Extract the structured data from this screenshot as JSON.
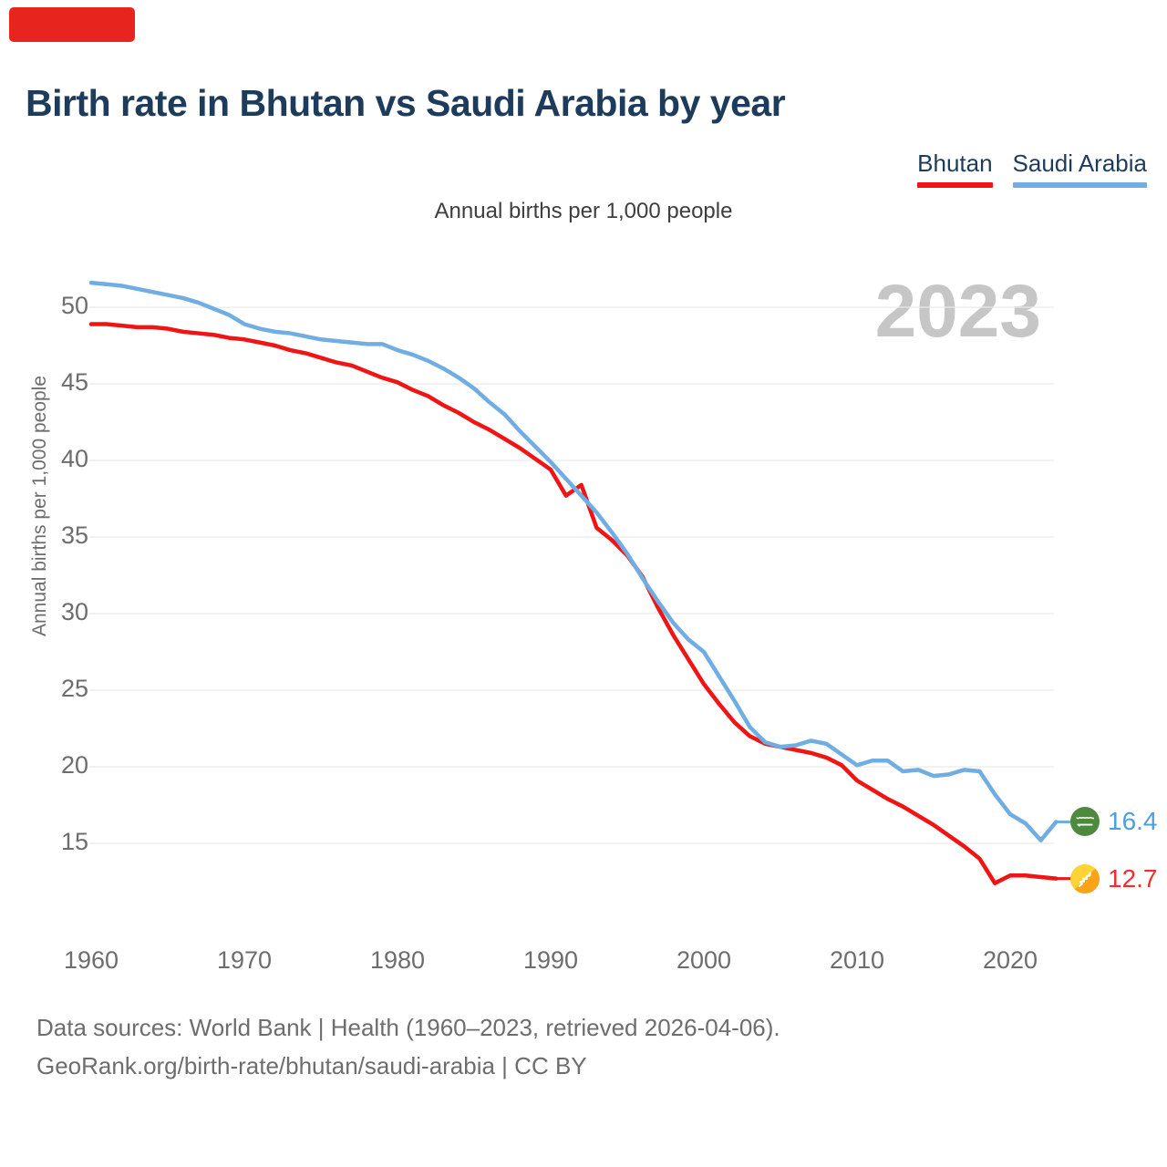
{
  "page": {
    "title": "Birth rate in Bhutan vs Saudi Arabia by year",
    "subtitle": "Annual births per 1,000 people",
    "watermark": "2023",
    "footer_line1": "Data sources: World Bank | Health (1960–2023, retrieved 2026-04-06).",
    "footer_line2": "GeoRank.org/birth-rate/bhutan/saudi-arabia | CC BY"
  },
  "colors": {
    "title_navy": "#1d3c5c",
    "bhutan_red": "#f01414",
    "saudi_blue": "#70ade2",
    "value_red": "#f22c2c",
    "value_blue": "#4d9fdb",
    "text_gray": "#6d6d6d",
    "subtitle_gray": "#3e3e3e",
    "watermark_gray": "#c6c6c6",
    "grid_gray": "#e9e9e9",
    "banner_red": "#e8241f",
    "saudi_flag_green": "#4e8a3d",
    "bhutan_flag_yellow": "#fdd335",
    "bhutan_flag_orange": "#f9a316"
  },
  "legend": {
    "items": [
      {
        "label": "Bhutan",
        "color": "#f01414"
      },
      {
        "label": "Saudi Arabia",
        "color": "#70ade2"
      }
    ]
  },
  "endpoints": [
    {
      "series": "Saudi Arabia",
      "value": "16.4",
      "icon": "saudi-arabia-flag-icon",
      "text_color": "#4d9fdb"
    },
    {
      "series": "Bhutan",
      "value": "12.7",
      "icon": "bhutan-flag-icon",
      "text_color": "#f22c2c"
    }
  ],
  "chart_data": {
    "type": "line",
    "title": "Birth rate in Bhutan vs Saudi Arabia by year",
    "ylabel": "Annual births per 1,000 people",
    "xlabel": "",
    "x_range": [
      1960,
      2023
    ],
    "ylim": [
      12,
      53
    ],
    "grid": "horizontal",
    "legend_position": "top-right",
    "xticks": [
      1960,
      1970,
      1980,
      1990,
      2000,
      2010,
      2020
    ],
    "yticks": [
      50,
      45,
      40,
      35,
      30,
      25,
      20,
      15
    ],
    "years": [
      1960,
      1961,
      1962,
      1963,
      1964,
      1965,
      1966,
      1967,
      1968,
      1969,
      1970,
      1971,
      1972,
      1973,
      1974,
      1975,
      1976,
      1977,
      1978,
      1979,
      1980,
      1981,
      1982,
      1983,
      1984,
      1985,
      1986,
      1987,
      1988,
      1989,
      1990,
      1991,
      1992,
      1993,
      1994,
      1995,
      1996,
      1997,
      1998,
      1999,
      2000,
      2001,
      2002,
      2003,
      2004,
      2005,
      2006,
      2007,
      2008,
      2009,
      2010,
      2011,
      2012,
      2013,
      2014,
      2015,
      2016,
      2017,
      2018,
      2019,
      2020,
      2021,
      2022,
      2023
    ],
    "series": [
      {
        "name": "Bhutan",
        "color": "#f01414",
        "end_label": "12.7",
        "values": [
          48.9,
          48.9,
          48.8,
          48.7,
          48.7,
          48.6,
          48.4,
          48.3,
          48.2,
          48.0,
          47.9,
          47.7,
          47.5,
          47.2,
          47.0,
          46.7,
          46.4,
          46.2,
          45.8,
          45.4,
          45.1,
          44.6,
          44.2,
          43.6,
          43.1,
          42.5,
          42.0,
          41.4,
          40.8,
          40.1,
          39.4,
          37.7,
          38.4,
          35.6,
          34.8,
          33.8,
          32.4,
          30.4,
          28.6,
          27.0,
          25.4,
          24.1,
          22.9,
          22.0,
          21.5,
          21.3,
          21.1,
          20.9,
          20.6,
          20.1,
          19.1,
          18.5,
          17.9,
          17.4,
          16.8,
          16.2,
          15.5,
          14.8,
          14.0,
          12.4,
          12.9,
          12.9,
          12.8,
          12.7
        ]
      },
      {
        "name": "Saudi Arabia",
        "color": "#70ade2",
        "end_label": "16.4",
        "values": [
          51.6,
          51.5,
          51.4,
          51.2,
          51.0,
          50.8,
          50.6,
          50.3,
          49.9,
          49.5,
          48.9,
          48.6,
          48.4,
          48.3,
          48.1,
          47.9,
          47.8,
          47.7,
          47.6,
          47.6,
          47.2,
          46.9,
          46.5,
          46.0,
          45.4,
          44.7,
          43.8,
          43.0,
          41.9,
          40.9,
          39.9,
          38.8,
          37.7,
          36.6,
          35.3,
          33.9,
          32.3,
          30.8,
          29.4,
          28.3,
          27.5,
          25.9,
          24.3,
          22.6,
          21.6,
          21.3,
          21.4,
          21.7,
          21.5,
          20.8,
          20.1,
          20.4,
          20.4,
          19.7,
          19.8,
          19.4,
          19.5,
          19.8,
          19.7,
          18.2,
          16.9,
          16.3,
          15.2,
          16.4
        ]
      }
    ],
    "watermark": "2023"
  }
}
